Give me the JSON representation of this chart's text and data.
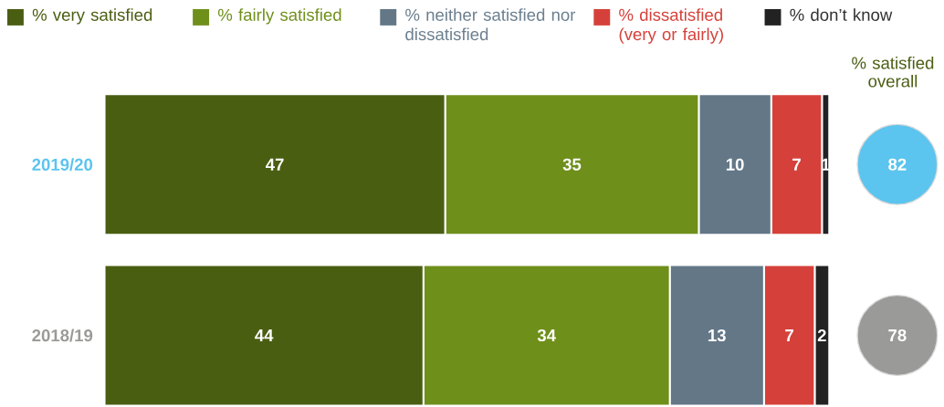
{
  "chart_data": {
    "type": "bar",
    "orientation": "horizontal",
    "stacked": true,
    "data_labels": true,
    "legend": "top",
    "tick_labels": "y",
    "categories": [
      "2019/20",
      "2018/19"
    ],
    "series": [
      {
        "name": "% very satisfied",
        "color": "#4a5e12",
        "values": [
          47,
          44
        ]
      },
      {
        "name": "% fairly satisfied",
        "color": "#6f8f1b",
        "values": [
          35,
          34
        ]
      },
      {
        "name": "% neither satisfied nor dissatisfied",
        "color": "#637787",
        "values": [
          10,
          13
        ]
      },
      {
        "name": "% dissatisfied (very or fairly)",
        "color": "#d5413a",
        "values": [
          7,
          7
        ]
      },
      {
        "name": "% don’t know",
        "color": "#222222",
        "values": [
          1,
          2
        ]
      }
    ],
    "annotations": [
      "% satisfied overall",
      "82",
      "78"
    ]
  }
}
